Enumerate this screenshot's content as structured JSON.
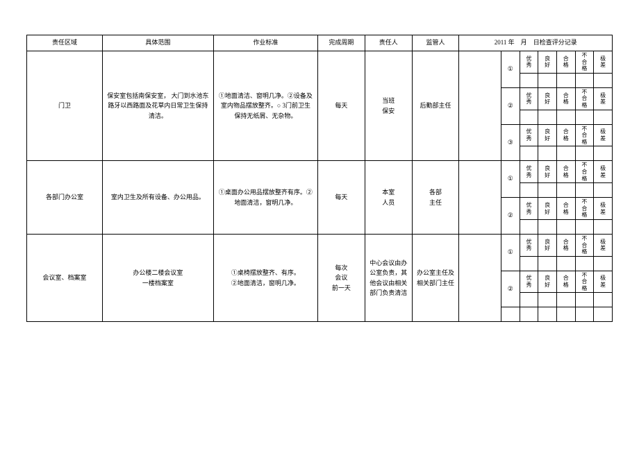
{
  "header": {
    "area": "责任区域",
    "scope": "具体范围",
    "standard": "作业标准",
    "cycle": "完成周期",
    "responsible": "责任人",
    "supervisor": "监管人",
    "date_prefix": "2011 年",
    "date_mid": "月",
    "date_suffix": "日检查评分记录"
  },
  "ratings": {
    "r1": "优\n秀",
    "r2": "良\n好",
    "r3": "合\n格",
    "r4": "不\n合\n格",
    "r5": "极\n差"
  },
  "circles": {
    "c1": "①",
    "c2": "②",
    "c3": "③"
  },
  "rows": [
    {
      "area": "门卫",
      "scope": "保安室包括南保安室，  大门到水池东路牙以西路面及花草内日常卫生保持清洁。",
      "standard": "①地面清洁、窗明几净。②设备及室内物品摆放整齐。○ 3门前卫生保持无纸屑、无杂物。",
      "cycle": "每天",
      "responsible": "当班\n保安",
      "supervisor": "后勤部主任"
    },
    {
      "area": "各部门办公室",
      "scope": "室内卫生及所有设备、办公用品。",
      "standard": "①桌面办公用品摆放整齐有序。②地面清洁，窗明几净。",
      "cycle": "每天",
      "responsible": "本室\n人员",
      "supervisor": "各部\n主任"
    },
    {
      "area": "会议室、档案室",
      "scope": "办公楼二楼会议室\n一楼档案室",
      "standard": "①桌椅摆放整齐、有序。\n②地面清洁，窗明几净。",
      "cycle": "每次\n会议\n前一天",
      "responsible": "中心会议由办公室负责，其他会议由相关部门负责清洁",
      "supervisor": "办公室主任及相关部门主任"
    }
  ]
}
